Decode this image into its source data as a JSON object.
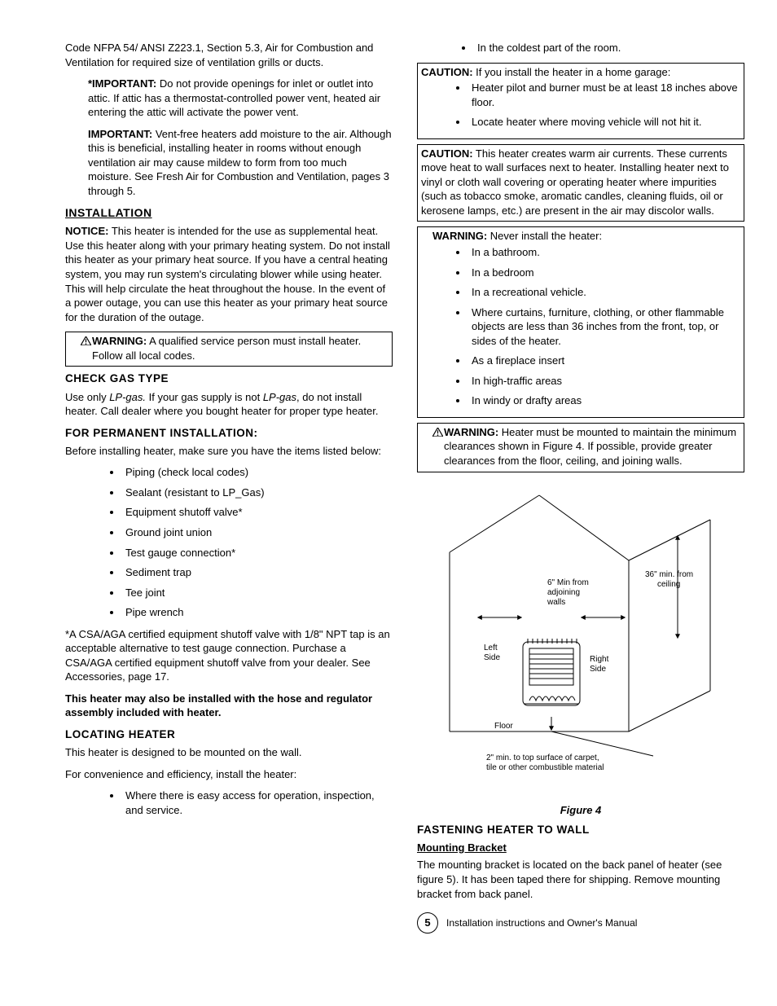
{
  "left": {
    "intro": "Code NFPA 54/ ANSI Z223.1, Section 5.3, Air for Combustion and Ventilation for required size of ventilation grills or ducts.",
    "important1_label": "*IMPORTANT:",
    "important1": " Do not provide openings for inlet or outlet into attic.  If attic has a thermostat-controlled power vent, heated air entering the attic will activate the power vent.",
    "important2_label": "IMPORTANT:",
    "important2": " Vent-free heaters add moisture to the air.  Although this is beneficial, installing heater in rooms without enough ventilation air may cause mildew to form from too much moisture. See Fresh Air for Combustion and Ventilation, pages 3 through 5.",
    "installation_h": "INSTALLATION",
    "notice_label": "NOTICE:",
    "notice": " This heater is intended for the use as supplemental heat.  Use this heater along with your primary heating system.  Do not install this heater as your primary heat source.  If you have a central heating system, you may run system's circulating blower while using heater.  This will help circulate the heat throughout the house. In the event of a power outage, you can use this heater as your primary heat source for the duration of the outage.",
    "warn1_label": "WARNING:",
    "warn1": " A qualified service person must install heater.  Follow all local codes.",
    "checkgas_h": "CHECK GAS TYPE",
    "checkgas_p1": "Use only ",
    "checkgas_lp": "LP-gas.",
    "checkgas_p2": " If your gas supply is not ",
    "checkgas_lp2": "LP-gas",
    "checkgas_p3": ", do not install heater.  Call dealer where you bought heater for proper type heater.",
    "perm_h": "FOR PERMANENT INSTALLATION:",
    "perm_intro": "Before installing heater, make sure you have the items listed below:",
    "perm_items": [
      "Piping (check local codes)",
      "Sealant (resistant to LP_Gas)",
      "Equipment shutoff valve*",
      "Ground joint union",
      "Test gauge connection*",
      "Sediment trap",
      "Tee joint",
      "Pipe wrench"
    ],
    "perm_note": "*A CSA/AGA certified equipment shutoff valve with 1/8\" NPT tap is an acceptable alternative to test gauge connection.  Purchase a CSA/AGA certified equipment shutoff valve from your dealer. See Accessories, page 17.",
    "perm_bold": "This heater may also be installed with the hose and regulator assembly included with heater.",
    "locate_h": "LOCATING HEATER",
    "locate_p1": "This heater is designed to be mounted on the wall.",
    "locate_p2": "For convenience and efficiency, install the heater:",
    "locate_items": [
      "Where there is easy access for operation, inspection, and service."
    ]
  },
  "right": {
    "cold_item": "In the coldest part of the room.",
    "caution1_label": "CAUTION:",
    "caution1": " If you install the heater in a home garage:",
    "caution1_items": [
      "Heater pilot and burner must be at least 18 inches above floor.",
      "Locate heater where moving vehicle will not hit it."
    ],
    "caution2_label": "CAUTION:",
    "caution2": " This heater creates warm air currents. These currents move heat to wall surfaces next to heater.  Installing heater next to vinyl or cloth wall covering or operating heater where impurities (such as tobacco smoke, aromatic candles, cleaning fluids, oil or kerosene lamps, etc.) are present in the air may discolor walls.",
    "warn2_label": "WARNING:",
    "warn2": " Never install the heater:",
    "warn2_items": [
      "In a bathroom.",
      "In a bedroom",
      "In a recreational vehicle.",
      "Where curtains, furniture, clothing, or other flammable objects are less than 36 inches from the front, top, or sides of the heater.",
      "As a fireplace insert",
      "In high-traffic areas",
      "In windy or drafty areas"
    ],
    "warn3_label": "WARNING:",
    "warn3": " Heater must be mounted to maintain the minimum clearances shown in Figure 4. If possible, provide greater clearances from the floor, ceiling, and joining walls.",
    "figure": {
      "caption": "Figure 4",
      "labels": {
        "ceiling": "36\" min. from ceiling",
        "walls": "6\" Min from adjoining walls",
        "left": "Left Side",
        "right": "Right Side",
        "floor": "Floor",
        "carpet": "2\" min. to top surface of carpet, tile or other combustible material"
      },
      "colors": {
        "stroke": "#000000",
        "fill": "#ffffff",
        "hatch": "#888888"
      },
      "font_size": 10
    },
    "fasten_h": "FASTENING HEATER TO WALL",
    "bracket_h": "Mounting Bracket",
    "bracket_p": "The mounting bracket is located on the back panel of heater (see figure 5). It has been taped there for shipping.  Remove mounting bracket from back panel."
  },
  "footer": {
    "page": "5",
    "text": "Installation instructions and Owner's Manual"
  }
}
